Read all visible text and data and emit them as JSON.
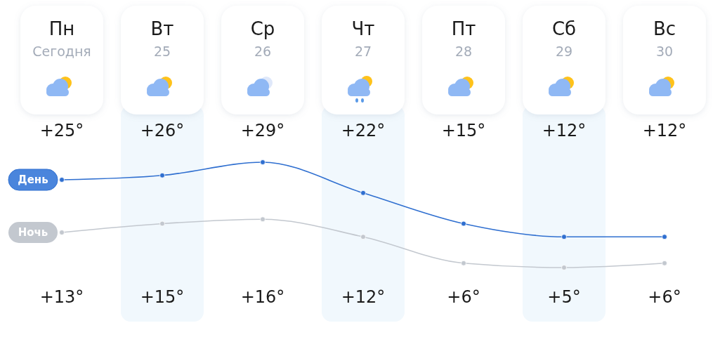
{
  "chart_data": {
    "type": "line",
    "categories": [
      "Пн\nСегодня",
      "Вт\n25",
      "Ср\n26",
      "Чт\n27",
      "Пт\n28",
      "Сб\n29",
      "Вс\n30"
    ],
    "marker": "circle",
    "series": [
      {
        "name": "День",
        "color": "#2f6fd0",
        "values": [
          25,
          26,
          29,
          22,
          15,
          12,
          12
        ],
        "value_labels": [
          "+25°",
          "+26°",
          "+29°",
          "+22°",
          "+15°",
          "+12°",
          "+12°"
        ]
      },
      {
        "name": "Ночь",
        "color": "#c3c8cf",
        "values": [
          13,
          15,
          16,
          12,
          6,
          5,
          6
        ],
        "value_labels": [
          "+13°",
          "+15°",
          "+16°",
          "+12°",
          "+6°",
          "+5°",
          "+6°"
        ]
      }
    ]
  }
}
